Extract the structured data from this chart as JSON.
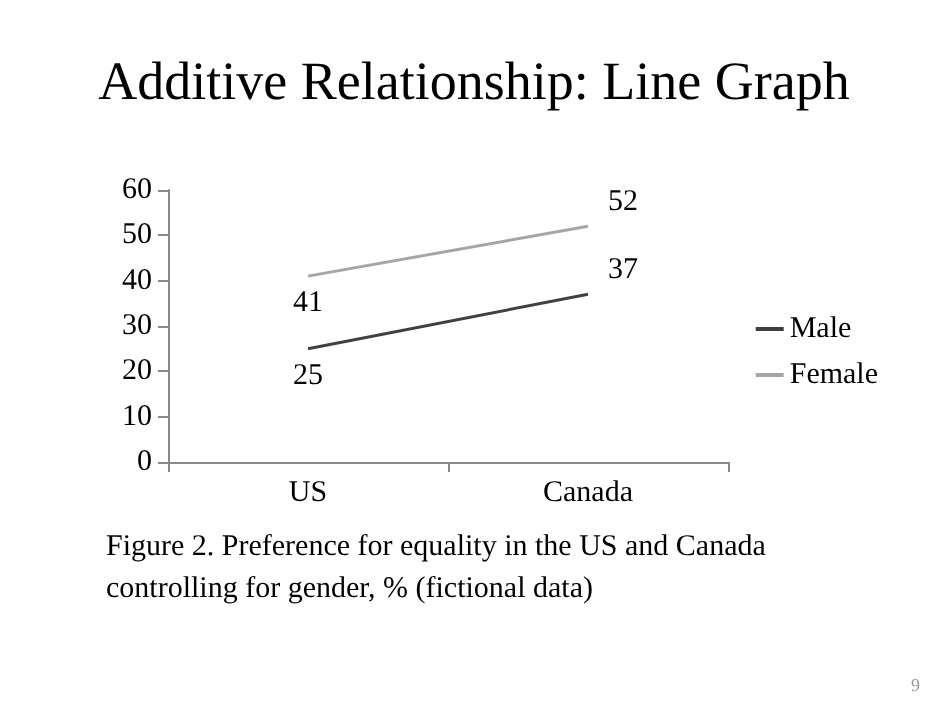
{
  "chart_data": {
    "type": "line",
    "title": "Additive Relationship: Line Graph",
    "categories": [
      "US",
      "Canada"
    ],
    "series": [
      {
        "name": "Male",
        "color": "#404040",
        "values": [
          25,
          37
        ]
      },
      {
        "name": "Female",
        "color": "#a6a6a6",
        "values": [
          41,
          52
        ]
      }
    ],
    "ylim": [
      0,
      60
    ],
    "yticks": [
      0,
      10,
      20,
      30,
      40,
      50,
      60
    ],
    "grid": false,
    "legend": "right",
    "marker": "none",
    "line_style": "solid",
    "data_labels": true,
    "annotations": [
      "Figure 2. Preference for equality in the US and Canada controlling for gender, % (fictional data)",
      "9"
    ]
  }
}
